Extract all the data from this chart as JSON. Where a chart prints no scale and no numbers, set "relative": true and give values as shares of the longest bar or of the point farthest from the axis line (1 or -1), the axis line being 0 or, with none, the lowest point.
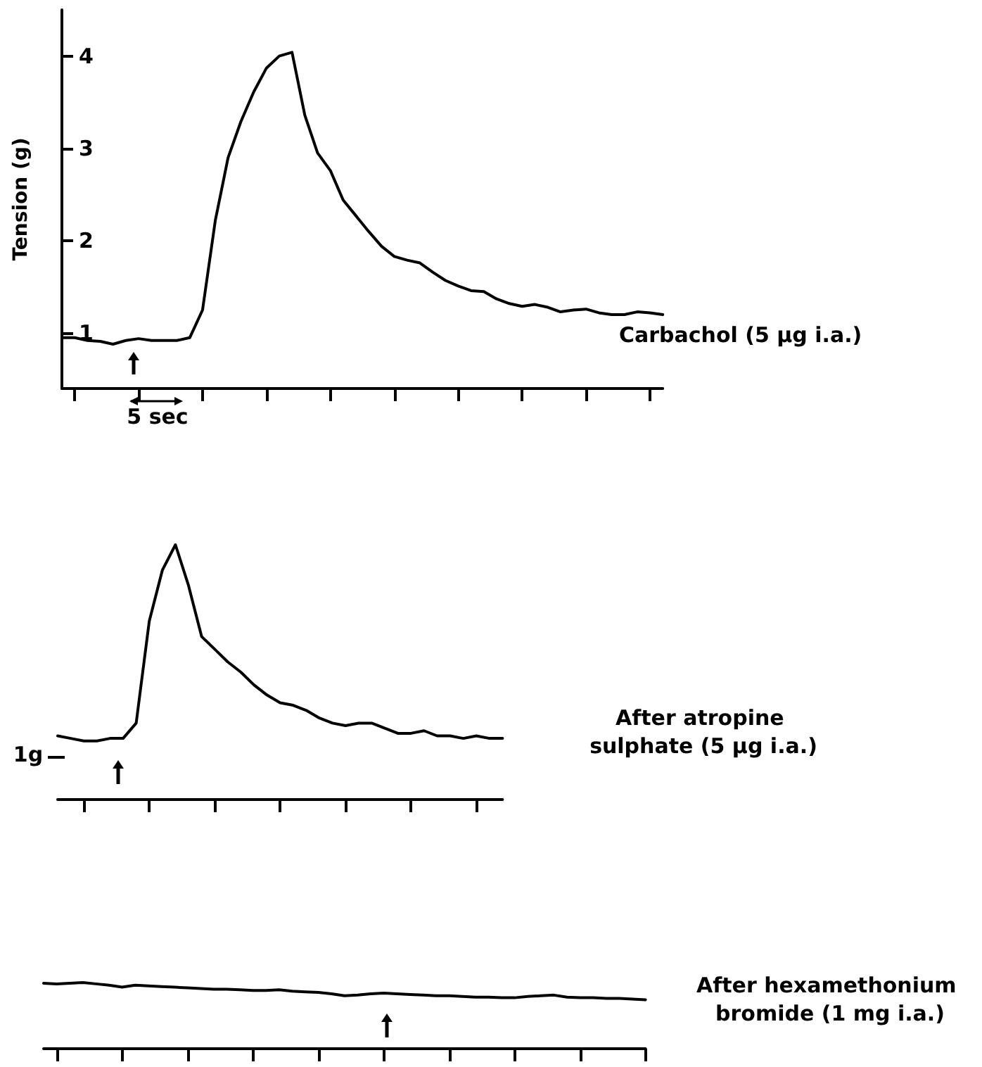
{
  "chart_data": [
    {
      "type": "line",
      "ylabel": "Tension (g)",
      "categories": [
        null,
        null,
        null,
        null,
        null,
        null,
        null,
        null,
        null,
        null,
        null,
        null,
        null,
        null,
        null,
        null,
        null,
        null,
        null,
        null,
        null,
        null,
        null,
        null,
        null,
        null,
        null,
        null,
        null,
        null,
        null,
        null,
        null,
        null,
        null,
        null,
        null,
        null,
        null,
        null,
        null,
        null,
        null,
        null,
        null,
        null,
        null,
        null
      ],
      "ylim": [
        0.4,
        4.5
      ],
      "yticks": [
        1,
        2,
        3,
        4
      ],
      "tick_labels": "y",
      "marker": "none",
      "color": "#000000",
      "values": [
        0.95,
        0.95,
        0.92,
        0.91,
        0.88,
        0.92,
        0.94,
        0.92,
        0.92,
        0.92,
        0.95,
        1.25,
        2.22,
        2.9,
        3.29,
        3.61,
        3.87,
        4.0,
        4.04,
        3.36,
        2.95,
        2.76,
        2.44,
        2.27,
        2.1,
        1.94,
        1.83,
        1.79,
        1.76,
        1.66,
        1.57,
        1.51,
        1.46,
        1.45,
        1.37,
        1.32,
        1.29,
        1.31,
        1.28,
        1.23,
        1.25,
        1.26,
        1.22,
        1.2,
        1.2,
        1.23,
        1.22,
        1.2
      ],
      "annotations": [
        "5 sec",
        "Carbachol (5 μg i.a.)"
      ]
    },
    {
      "type": "line",
      "relative": true,
      "categories": [
        null,
        null,
        null,
        null,
        null,
        null,
        null,
        null,
        null,
        null,
        null,
        null,
        null,
        null,
        null,
        null,
        null,
        null,
        null,
        null,
        null,
        null,
        null,
        null,
        null,
        null,
        null,
        null,
        null,
        null,
        null,
        null,
        null,
        null,
        null
      ],
      "tick_labels": false,
      "marker": "none",
      "color": "#000000",
      "values": [
        0.25,
        0.24,
        0.23,
        0.23,
        0.24,
        0.24,
        0.3,
        0.7,
        0.9,
        1.0,
        0.84,
        0.64,
        0.59,
        0.54,
        0.5,
        0.45,
        0.41,
        0.38,
        0.37,
        0.35,
        0.32,
        0.3,
        0.29,
        0.3,
        0.3,
        0.28,
        0.26,
        0.26,
        0.27,
        0.25,
        0.25,
        0.24,
        0.25,
        0.24,
        0.24
      ],
      "annotations": [
        "1g",
        "After atropine sulphate (5 μg i.a.)"
      ]
    },
    {
      "type": "line",
      "relative": true,
      "categories": [
        null,
        null,
        null,
        null,
        null,
        null,
        null,
        null,
        null,
        null,
        null,
        null,
        null,
        null,
        null,
        null,
        null,
        null,
        null,
        null,
        null,
        null,
        null,
        null,
        null,
        null,
        null,
        null,
        null,
        null,
        null,
        null,
        null,
        null,
        null,
        null,
        null,
        null,
        null,
        null,
        null,
        null,
        null,
        null,
        null,
        null,
        null
      ],
      "tick_labels": false,
      "marker": "none",
      "color": "#000000",
      "values": [
        0.99,
        0.98,
        0.99,
        1.0,
        0.98,
        0.96,
        0.93,
        0.96,
        0.95,
        0.94,
        0.93,
        0.92,
        0.91,
        0.9,
        0.9,
        0.89,
        0.88,
        0.88,
        0.89,
        0.87,
        0.86,
        0.85,
        0.83,
        0.8,
        0.81,
        0.83,
        0.84,
        0.83,
        0.82,
        0.81,
        0.8,
        0.8,
        0.79,
        0.78,
        0.78,
        0.77,
        0.77,
        0.79,
        0.8,
        0.81,
        0.78,
        0.77,
        0.77,
        0.76,
        0.76,
        0.75,
        0.74
      ],
      "annotations": [
        "After hexamethonium bromide (1 mg i.a.)"
      ]
    }
  ]
}
